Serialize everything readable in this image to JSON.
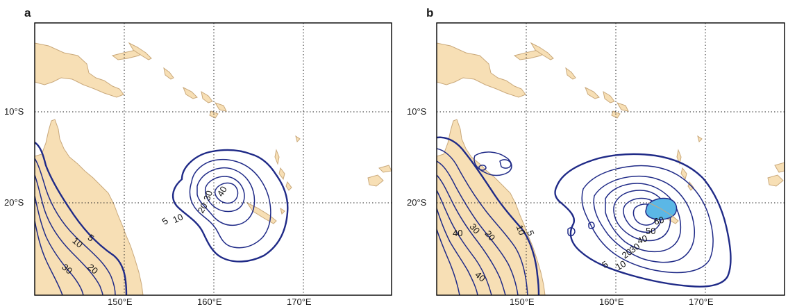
{
  "panels": [
    {
      "label": "a",
      "lat_labels": [
        "10°S",
        "20°S"
      ],
      "lon_labels": [
        "150°E",
        "160°E",
        "170°E"
      ],
      "contour_labels": [
        "5",
        "10",
        "20",
        "30",
        "40",
        "5",
        "10",
        "20",
        "30"
      ]
    },
    {
      "label": "b",
      "lat_labels": [
        "10°S",
        "20°S"
      ],
      "lon_labels": [
        "150°E",
        "160°E",
        "170°E"
      ],
      "contour_labels": [
        "60",
        "50",
        "40",
        "30",
        "20",
        "10",
        "5",
        "40",
        "30",
        "20",
        "10",
        "5",
        "40"
      ]
    }
  ],
  "colors": {
    "land": "#f7dfb5",
    "coast": "#c9a87a",
    "contour": "#1f2a87",
    "shading": "#5bb7e6"
  }
}
